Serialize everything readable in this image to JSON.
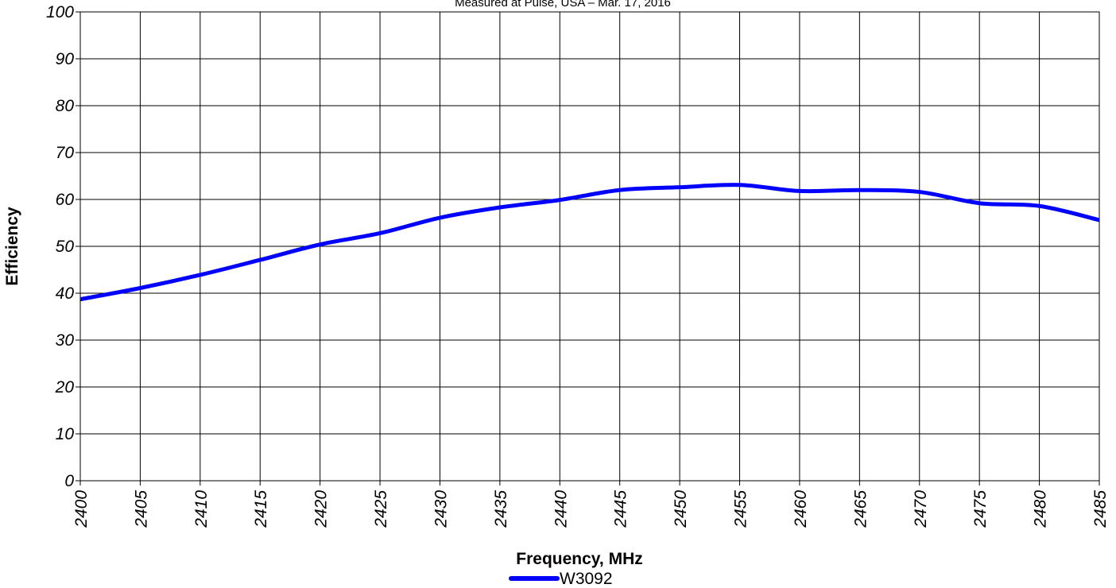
{
  "chart_data": {
    "type": "line",
    "subtitle": "Measured at Pulse, USA – Mar. 17, 2016",
    "xlabel": "Frequency, MHz",
    "ylabel": "Efficiency",
    "xlim": [
      2400,
      2485
    ],
    "ylim": [
      0,
      100
    ],
    "xticks": [
      "2400",
      "2405",
      "2410",
      "2415",
      "2420",
      "2425",
      "2430",
      "2435",
      "2440",
      "2445",
      "2450",
      "2455",
      "2460",
      "2465",
      "2470",
      "2475",
      "2480",
      "2485"
    ],
    "yticks": [
      "0",
      "10",
      "20",
      "30",
      "40",
      "50",
      "60",
      "70",
      "80",
      "90",
      "100"
    ],
    "grid": true,
    "legend_position": "bottom-center",
    "series": [
      {
        "name": "W3092",
        "color": "#0000ff",
        "x": [
          2400,
          2405,
          2410,
          2415,
          2420,
          2425,
          2430,
          2435,
          2440,
          2445,
          2450,
          2455,
          2460,
          2465,
          2470,
          2475,
          2480,
          2485
        ],
        "y": [
          38.7,
          41.1,
          43.9,
          47.1,
          50.4,
          52.8,
          56.1,
          58.3,
          59.9,
          62.0,
          62.6,
          63.1,
          61.8,
          62.0,
          61.6,
          59.2,
          58.6,
          55.6
        ]
      }
    ]
  }
}
